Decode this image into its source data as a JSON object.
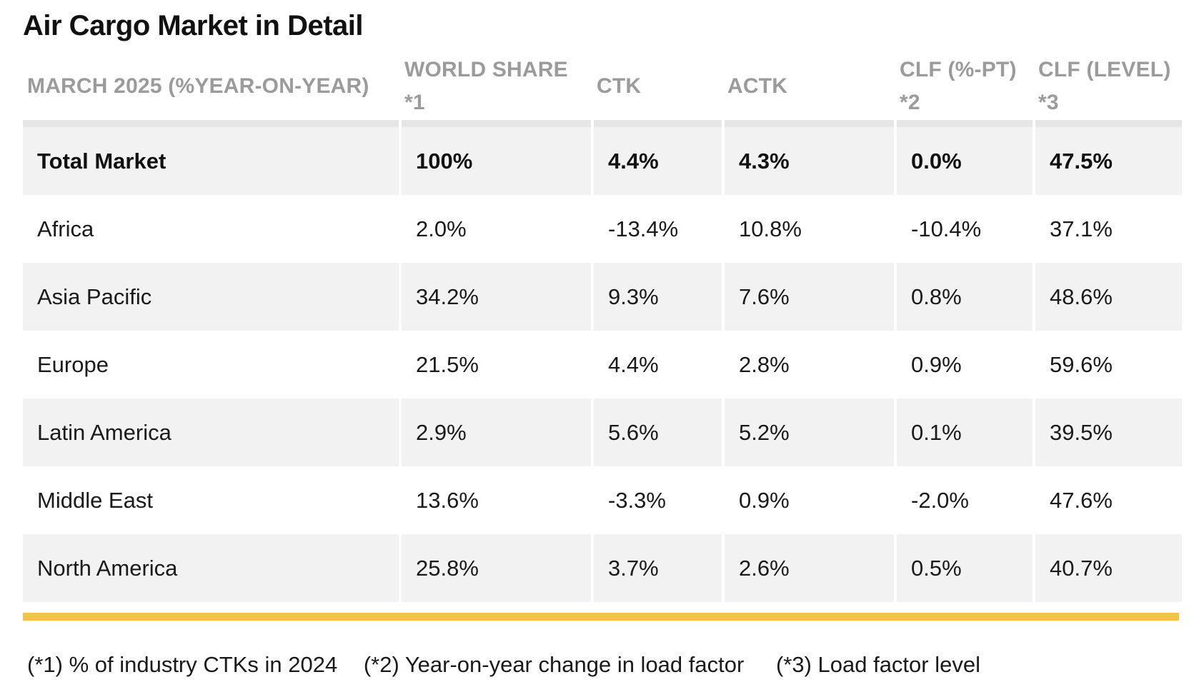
{
  "title": "Air Cargo Market in Detail",
  "table": {
    "headers": [
      "MARCH 2025 (%YEAR-ON-YEAR)",
      "WORLD SHARE *1",
      "CTK",
      "ACTK",
      "CLF (%-PT) *2",
      "CLF (LEVEL) *3"
    ],
    "rows": [
      [
        "Total Market",
        "100%",
        "4.4%",
        "4.3%",
        "0.0%",
        "47.5%"
      ],
      [
        "Africa",
        "2.0%",
        "-13.4%",
        "10.8%",
        "-10.4%",
        "37.1%"
      ],
      [
        "Asia Pacific",
        "34.2%",
        "9.3%",
        "7.6%",
        "0.8%",
        "48.6%"
      ],
      [
        "Europe",
        "21.5%",
        "4.4%",
        "2.8%",
        "0.9%",
        "59.6%"
      ],
      [
        "Latin America",
        "2.9%",
        "5.6%",
        "5.2%",
        "0.1%",
        "39.5%"
      ],
      [
        "Middle East",
        "13.6%",
        "-3.3%",
        "0.9%",
        "-2.0%",
        "47.6%"
      ],
      [
        "North America",
        "25.8%",
        "3.7%",
        "2.6%",
        "0.5%",
        "40.7%"
      ]
    ]
  },
  "footnotes": [
    "(*1) % of industry CTKs in 2024",
    "(*2) Year-on-year change in load factor",
    "(*3) Load factor level"
  ],
  "colors": {
    "accent_rule": "#f0c44a",
    "header_text": "#9b9b9b",
    "shaded_row": "#f2f2f2"
  }
}
